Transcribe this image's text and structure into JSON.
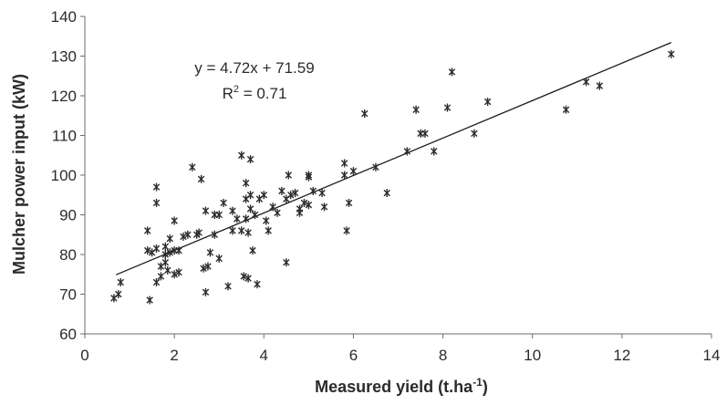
{
  "chart_data": {
    "type": "scatter",
    "title": "",
    "xlabel": "Measured yield (t.ha",
    "xlabel_sup": "-1",
    "xlabel_end": ")",
    "ylabel": "Mulcher power input (kW)",
    "xlim": [
      0,
      14
    ],
    "ylim": [
      60,
      140
    ],
    "xticks": [
      0,
      2,
      4,
      6,
      8,
      10,
      12,
      14
    ],
    "yticks": [
      60,
      70,
      80,
      90,
      100,
      110,
      120,
      130,
      140
    ],
    "grid": false,
    "legend": "none",
    "marker": "asterisk",
    "marker_color": "#2a2a2a",
    "trendline": {
      "slope": 4.72,
      "intercept": 71.59,
      "x_range": [
        0.7,
        13.1
      ],
      "equation": "y = 4.72x + 71.59",
      "r2_prefix": "R",
      "r2_sup": "2",
      "r2_suffix": " = 0.71"
    },
    "points": [
      [
        0.65,
        69
      ],
      [
        0.75,
        70
      ],
      [
        0.8,
        73
      ],
      [
        1.4,
        86
      ],
      [
        1.4,
        81
      ],
      [
        1.45,
        68.5
      ],
      [
        1.5,
        80.5
      ],
      [
        1.6,
        97
      ],
      [
        1.6,
        93
      ],
      [
        1.6,
        81.5
      ],
      [
        1.6,
        73
      ],
      [
        1.7,
        77
      ],
      [
        1.7,
        74.5
      ],
      [
        1.8,
        82
      ],
      [
        1.8,
        80
      ],
      [
        1.8,
        78
      ],
      [
        1.85,
        76
      ],
      [
        1.9,
        84
      ],
      [
        1.9,
        80.5
      ],
      [
        2.0,
        88.5
      ],
      [
        2.0,
        81
      ],
      [
        2.0,
        75
      ],
      [
        2.1,
        81
      ],
      [
        2.1,
        75.5
      ],
      [
        2.2,
        84.5
      ],
      [
        2.3,
        85
      ],
      [
        2.4,
        102
      ],
      [
        2.5,
        85
      ],
      [
        2.55,
        85.5
      ],
      [
        2.6,
        99
      ],
      [
        2.65,
        76.5
      ],
      [
        2.7,
        91
      ],
      [
        2.7,
        70.5
      ],
      [
        2.75,
        77
      ],
      [
        2.8,
        80.5
      ],
      [
        2.9,
        90
      ],
      [
        2.9,
        85
      ],
      [
        3.0,
        90
      ],
      [
        3.0,
        79
      ],
      [
        3.1,
        93
      ],
      [
        3.2,
        72
      ],
      [
        3.3,
        91
      ],
      [
        3.3,
        86
      ],
      [
        3.4,
        89
      ],
      [
        3.5,
        105
      ],
      [
        3.5,
        86
      ],
      [
        3.55,
        74.5
      ],
      [
        3.6,
        98
      ],
      [
        3.6,
        94
      ],
      [
        3.6,
        89
      ],
      [
        3.65,
        85.5
      ],
      [
        3.65,
        74
      ],
      [
        3.7,
        104
      ],
      [
        3.7,
        95
      ],
      [
        3.7,
        91.5
      ],
      [
        3.75,
        81
      ],
      [
        3.8,
        90
      ],
      [
        3.85,
        72.5
      ],
      [
        3.9,
        94
      ],
      [
        4.0,
        95
      ],
      [
        4.05,
        88.5
      ],
      [
        4.1,
        86
      ],
      [
        4.2,
        92
      ],
      [
        4.3,
        90.5
      ],
      [
        4.4,
        96
      ],
      [
        4.5,
        94
      ],
      [
        4.5,
        78
      ],
      [
        4.55,
        100
      ],
      [
        4.6,
        95
      ],
      [
        4.7,
        95.5
      ],
      [
        4.8,
        91.5
      ],
      [
        4.8,
        90.5
      ],
      [
        4.9,
        93
      ],
      [
        5.0,
        100
      ],
      [
        5.0,
        99.5
      ],
      [
        5.0,
        92.5
      ],
      [
        5.1,
        96
      ],
      [
        5.3,
        95.5
      ],
      [
        5.35,
        92
      ],
      [
        5.8,
        103
      ],
      [
        5.8,
        100
      ],
      [
        5.85,
        86
      ],
      [
        5.9,
        93
      ],
      [
        6.0,
        101
      ],
      [
        6.25,
        115.5
      ],
      [
        6.5,
        102
      ],
      [
        6.75,
        95.5
      ],
      [
        7.2,
        106
      ],
      [
        7.4,
        116.5
      ],
      [
        7.5,
        110.5
      ],
      [
        7.6,
        110.5
      ],
      [
        7.8,
        106
      ],
      [
        8.1,
        117
      ],
      [
        8.2,
        126
      ],
      [
        8.7,
        110.5
      ],
      [
        9.0,
        118.5
      ],
      [
        10.75,
        116.5
      ],
      [
        11.2,
        123.5
      ],
      [
        11.5,
        122.5
      ],
      [
        13.1,
        130.5
      ]
    ]
  }
}
